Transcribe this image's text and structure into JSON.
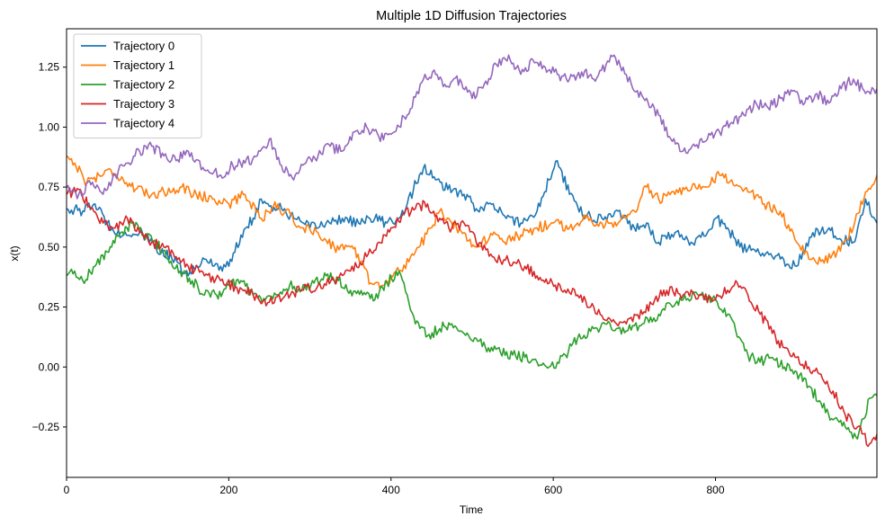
{
  "chart_data": {
    "type": "line",
    "title": "Multiple 1D Diffusion Trajectories",
    "xlabel": "Time",
    "ylabel": "x(t)",
    "xlim": [
      0,
      999
    ],
    "ylim": [
      -0.46,
      1.41
    ],
    "xticks": [
      0,
      200,
      400,
      600,
      800
    ],
    "yticks": [
      -0.25,
      0.0,
      0.25,
      0.5,
      0.75,
      1.0,
      1.25
    ],
    "xtick_labels": [
      "0",
      "200",
      "400",
      "600",
      "800"
    ],
    "ytick_labels": [
      "−0.25",
      "0.00",
      "0.25",
      "0.50",
      "0.75",
      "1.00",
      "1.25"
    ],
    "grid": false,
    "legend_position": "top-left",
    "series": [
      {
        "name": "Trajectory 0",
        "color": "#1f77b4",
        "x": [
          0,
          20,
          35,
          50,
          70,
          90,
          110,
          130,
          150,
          170,
          190,
          200,
          215,
          230,
          240,
          250,
          265,
          280,
          300,
          320,
          340,
          360,
          380,
          395,
          410,
          420,
          435,
          440,
          455,
          470,
          490,
          505,
          520,
          540,
          560,
          580,
          595,
          605,
          620,
          640,
          660,
          680,
          700,
          715,
          730,
          750,
          770,
          790,
          800,
          815,
          830,
          850,
          870,
          880,
          900,
          920,
          940,
          955,
          970,
          985,
          999
        ],
        "y": [
          0.66,
          0.65,
          0.68,
          0.6,
          0.55,
          0.56,
          0.5,
          0.45,
          0.38,
          0.45,
          0.42,
          0.42,
          0.55,
          0.62,
          0.7,
          0.67,
          0.66,
          0.62,
          0.58,
          0.6,
          0.62,
          0.6,
          0.62,
          0.6,
          0.62,
          0.68,
          0.8,
          0.83,
          0.78,
          0.74,
          0.72,
          0.66,
          0.68,
          0.63,
          0.6,
          0.65,
          0.78,
          0.86,
          0.72,
          0.63,
          0.62,
          0.65,
          0.58,
          0.6,
          0.52,
          0.56,
          0.52,
          0.56,
          0.62,
          0.58,
          0.5,
          0.48,
          0.46,
          0.45,
          0.42,
          0.56,
          0.58,
          0.53,
          0.52,
          0.7,
          0.6
        ]
      },
      {
        "name": "Trajectory 1",
        "color": "#ff7f0e",
        "x": [
          0,
          10,
          25,
          40,
          55,
          70,
          85,
          100,
          120,
          140,
          160,
          180,
          200,
          220,
          240,
          255,
          270,
          290,
          310,
          330,
          350,
          365,
          375,
          390,
          410,
          430,
          450,
          460,
          475,
          490,
          505,
          525,
          540,
          560,
          580,
          600,
          620,
          640,
          660,
          680,
          700,
          715,
          730,
          750,
          770,
          790,
          805,
          820,
          840,
          860,
          880,
          900,
          915,
          930,
          950,
          970,
          985,
          999
        ],
        "y": [
          0.88,
          0.85,
          0.77,
          0.8,
          0.82,
          0.78,
          0.74,
          0.72,
          0.73,
          0.75,
          0.72,
          0.7,
          0.68,
          0.72,
          0.62,
          0.67,
          0.65,
          0.58,
          0.56,
          0.5,
          0.5,
          0.44,
          0.35,
          0.34,
          0.4,
          0.48,
          0.58,
          0.65,
          0.6,
          0.56,
          0.5,
          0.55,
          0.52,
          0.55,
          0.58,
          0.6,
          0.58,
          0.62,
          0.6,
          0.6,
          0.65,
          0.75,
          0.7,
          0.72,
          0.74,
          0.75,
          0.8,
          0.78,
          0.73,
          0.68,
          0.65,
          0.52,
          0.45,
          0.44,
          0.48,
          0.58,
          0.73,
          0.8
        ]
      },
      {
        "name": "Trajectory 2",
        "color": "#2ca02c",
        "x": [
          0,
          10,
          20,
          35,
          50,
          65,
          80,
          95,
          110,
          125,
          140,
          155,
          170,
          185,
          200,
          215,
          230,
          245,
          260,
          275,
          290,
          305,
          320,
          335,
          350,
          365,
          380,
          395,
          410,
          420,
          430,
          445,
          460,
          475,
          490,
          505,
          520,
          535,
          550,
          565,
          580,
          595,
          605,
          615,
          630,
          650,
          670,
          690,
          710,
          730,
          745,
          760,
          780,
          800,
          815,
          825,
          840,
          855,
          870,
          885,
          900,
          915,
          930,
          945,
          960,
          975,
          990,
          999
        ],
        "y": [
          0.38,
          0.4,
          0.36,
          0.42,
          0.48,
          0.55,
          0.6,
          0.55,
          0.52,
          0.45,
          0.4,
          0.36,
          0.3,
          0.3,
          0.34,
          0.36,
          0.3,
          0.28,
          0.3,
          0.34,
          0.32,
          0.35,
          0.38,
          0.36,
          0.32,
          0.3,
          0.28,
          0.35,
          0.4,
          0.3,
          0.18,
          0.13,
          0.16,
          0.18,
          0.14,
          0.12,
          0.08,
          0.06,
          0.05,
          0.04,
          0.02,
          0.0,
          0.02,
          0.05,
          0.12,
          0.16,
          0.18,
          0.15,
          0.18,
          0.22,
          0.26,
          0.28,
          0.3,
          0.28,
          0.22,
          0.15,
          0.05,
          0.02,
          0.04,
          0.0,
          -0.02,
          -0.08,
          -0.15,
          -0.22,
          -0.25,
          -0.3,
          -0.13,
          -0.12
        ]
      },
      {
        "name": "Trajectory 3",
        "color": "#d62728",
        "x": [
          0,
          15,
          30,
          45,
          60,
          75,
          90,
          105,
          120,
          135,
          150,
          170,
          190,
          210,
          230,
          250,
          270,
          290,
          310,
          330,
          350,
          370,
          385,
          400,
          415,
          430,
          445,
          460,
          475,
          490,
          505,
          525,
          545,
          565,
          580,
          595,
          610,
          630,
          650,
          670,
          690,
          710,
          725,
          740,
          760,
          780,
          800,
          815,
          825,
          840,
          855,
          870,
          885,
          900,
          915,
          930,
          945,
          960,
          975,
          990,
          999
        ],
        "y": [
          0.72,
          0.74,
          0.66,
          0.6,
          0.58,
          0.62,
          0.56,
          0.52,
          0.5,
          0.46,
          0.42,
          0.38,
          0.36,
          0.33,
          0.3,
          0.27,
          0.3,
          0.32,
          0.34,
          0.36,
          0.4,
          0.46,
          0.52,
          0.58,
          0.64,
          0.66,
          0.68,
          0.62,
          0.58,
          0.6,
          0.52,
          0.46,
          0.44,
          0.42,
          0.38,
          0.35,
          0.32,
          0.3,
          0.25,
          0.2,
          0.18,
          0.22,
          0.28,
          0.32,
          0.3,
          0.3,
          0.28,
          0.32,
          0.36,
          0.3,
          0.22,
          0.14,
          0.08,
          0.04,
          0.0,
          -0.03,
          -0.1,
          -0.2,
          -0.25,
          -0.32,
          -0.28
        ]
      },
      {
        "name": "Trajectory 4",
        "color": "#9467bd",
        "x": [
          0,
          15,
          30,
          45,
          60,
          75,
          90,
          105,
          120,
          135,
          150,
          170,
          190,
          205,
          220,
          235,
          250,
          265,
          280,
          295,
          310,
          325,
          340,
          355,
          370,
          385,
          400,
          420,
          440,
          455,
          470,
          485,
          500,
          515,
          530,
          545,
          560,
          575,
          590,
          605,
          620,
          635,
          650,
          665,
          675,
          690,
          700,
          715,
          730,
          745,
          760,
          775,
          790,
          805,
          820,
          835,
          850,
          865,
          880,
          895,
          910,
          925,
          940,
          955,
          970,
          985,
          999
        ],
        "y": [
          0.75,
          0.72,
          0.76,
          0.72,
          0.8,
          0.85,
          0.9,
          0.92,
          0.88,
          0.86,
          0.9,
          0.82,
          0.8,
          0.84,
          0.85,
          0.88,
          0.95,
          0.84,
          0.78,
          0.85,
          0.88,
          0.92,
          0.9,
          0.98,
          1.0,
          0.96,
          0.97,
          1.05,
          1.2,
          1.22,
          1.17,
          1.2,
          1.12,
          1.18,
          1.26,
          1.3,
          1.22,
          1.28,
          1.25,
          1.22,
          1.2,
          1.23,
          1.2,
          1.26,
          1.3,
          1.22,
          1.15,
          1.12,
          1.05,
          0.95,
          0.9,
          0.92,
          0.95,
          0.98,
          1.02,
          1.05,
          1.1,
          1.08,
          1.12,
          1.15,
          1.1,
          1.14,
          1.1,
          1.16,
          1.2,
          1.14,
          1.16
        ]
      }
    ]
  }
}
